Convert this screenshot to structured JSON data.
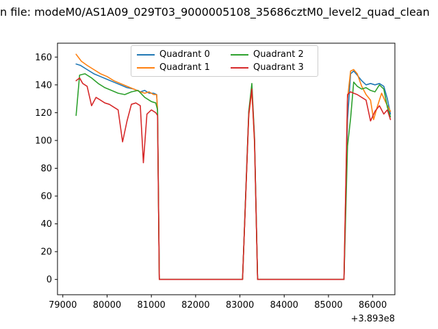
{
  "window": {
    "title": "n file: modeM0/AS1A09_029T03_9000005108_35686cztM0_level2_quad_clean"
  },
  "chart_data": {
    "type": "line",
    "title": "",
    "xlabel": "",
    "ylabel": "",
    "x_offset_label": "+3.893e8",
    "xlim": [
      78880,
      86500
    ],
    "ylim": [
      -11,
      170
    ],
    "x_ticks": [
      79000,
      80000,
      81000,
      82000,
      83000,
      84000,
      85000,
      86000
    ],
    "y_ticks": [
      0,
      20,
      40,
      60,
      80,
      100,
      120,
      140,
      160
    ],
    "grid": false,
    "legend": {
      "position": "upper center",
      "columns": 2
    },
    "series": [
      {
        "name": "Quadrant 0",
        "color": "#1f77b4",
        "points": [
          [
            79300,
            155
          ],
          [
            79400,
            154
          ],
          [
            79550,
            151
          ],
          [
            79700,
            148
          ],
          [
            79850,
            146
          ],
          [
            80000,
            144
          ],
          [
            80150,
            142
          ],
          [
            80300,
            140
          ],
          [
            80450,
            138
          ],
          [
            80600,
            137
          ],
          [
            80750,
            135
          ],
          [
            80850,
            136
          ],
          [
            80950,
            134
          ],
          [
            81050,
            134
          ],
          [
            81120,
            133
          ],
          [
            81140,
            121
          ],
          [
            81180,
            0
          ],
          [
            83060,
            0
          ],
          [
            83200,
            120
          ],
          [
            83270,
            138
          ],
          [
            83330,
            100
          ],
          [
            83400,
            0
          ],
          [
            85350,
            0
          ],
          [
            85430,
            115
          ],
          [
            85500,
            148
          ],
          [
            85570,
            150
          ],
          [
            85650,
            147
          ],
          [
            85750,
            143
          ],
          [
            85850,
            140
          ],
          [
            85950,
            141
          ],
          [
            86050,
            140
          ],
          [
            86150,
            141
          ],
          [
            86250,
            139
          ],
          [
            86330,
            130
          ],
          [
            86400,
            119
          ]
        ]
      },
      {
        "name": "Quadrant 1",
        "color": "#ff7f0e",
        "points": [
          [
            79300,
            162
          ],
          [
            79420,
            157
          ],
          [
            79550,
            154
          ],
          [
            79700,
            151
          ],
          [
            79850,
            148
          ],
          [
            80000,
            146
          ],
          [
            80150,
            143
          ],
          [
            80300,
            141
          ],
          [
            80450,
            139
          ],
          [
            80600,
            137
          ],
          [
            80750,
            135
          ],
          [
            80850,
            134
          ],
          [
            80950,
            135
          ],
          [
            81050,
            133
          ],
          [
            81120,
            133
          ],
          [
            81140,
            122
          ],
          [
            81180,
            0
          ],
          [
            83060,
            0
          ],
          [
            83200,
            118
          ],
          [
            83270,
            136
          ],
          [
            83330,
            98
          ],
          [
            83400,
            0
          ],
          [
            85350,
            0
          ],
          [
            85430,
            130
          ],
          [
            85500,
            150
          ],
          [
            85570,
            151
          ],
          [
            85650,
            148
          ],
          [
            85750,
            139
          ],
          [
            85850,
            133
          ],
          [
            85950,
            129
          ],
          [
            86020,
            115
          ],
          [
            86100,
            124
          ],
          [
            86200,
            134
          ],
          [
            86300,
            127
          ],
          [
            86400,
            121
          ]
        ]
      },
      {
        "name": "Quadrant 2",
        "color": "#2ca02c",
        "points": [
          [
            79300,
            118
          ],
          [
            79380,
            147
          ],
          [
            79500,
            148
          ],
          [
            79650,
            145
          ],
          [
            79800,
            141
          ],
          [
            79950,
            138
          ],
          [
            80100,
            136
          ],
          [
            80250,
            134
          ],
          [
            80400,
            133
          ],
          [
            80550,
            135
          ],
          [
            80700,
            136
          ],
          [
            80850,
            131
          ],
          [
            81000,
            128
          ],
          [
            81100,
            127
          ],
          [
            81140,
            122
          ],
          [
            81180,
            0
          ],
          [
            83060,
            0
          ],
          [
            83200,
            121
          ],
          [
            83270,
            141
          ],
          [
            83330,
            102
          ],
          [
            83400,
            0
          ],
          [
            85350,
            0
          ],
          [
            85430,
            96
          ],
          [
            85500,
            116
          ],
          [
            85570,
            142
          ],
          [
            85650,
            139
          ],
          [
            85750,
            137
          ],
          [
            85850,
            138
          ],
          [
            85950,
            136
          ],
          [
            86050,
            135
          ],
          [
            86150,
            140
          ],
          [
            86250,
            137
          ],
          [
            86330,
            124
          ],
          [
            86400,
            117
          ]
        ]
      },
      {
        "name": "Quadrant 3",
        "color": "#d62728",
        "points": [
          [
            79300,
            143
          ],
          [
            79380,
            145
          ],
          [
            79450,
            141
          ],
          [
            79550,
            139
          ],
          [
            79650,
            125
          ],
          [
            79750,
            131
          ],
          [
            79850,
            129
          ],
          [
            79950,
            127
          ],
          [
            80050,
            126
          ],
          [
            80150,
            124
          ],
          [
            80250,
            122
          ],
          [
            80350,
            99
          ],
          [
            80450,
            114
          ],
          [
            80550,
            126
          ],
          [
            80650,
            127
          ],
          [
            80750,
            125
          ],
          [
            80820,
            84
          ],
          [
            80900,
            119
          ],
          [
            81000,
            122
          ],
          [
            81100,
            120
          ],
          [
            81140,
            118
          ],
          [
            81180,
            0
          ],
          [
            83060,
            0
          ],
          [
            83200,
            119
          ],
          [
            83270,
            137
          ],
          [
            83330,
            100
          ],
          [
            83400,
            0
          ],
          [
            85350,
            0
          ],
          [
            85430,
            133
          ],
          [
            85500,
            135
          ],
          [
            85570,
            134
          ],
          [
            85650,
            133
          ],
          [
            85750,
            131
          ],
          [
            85850,
            129
          ],
          [
            85950,
            114
          ],
          [
            86050,
            121
          ],
          [
            86150,
            125
          ],
          [
            86250,
            119
          ],
          [
            86330,
            122
          ],
          [
            86400,
            115
          ]
        ]
      }
    ]
  }
}
